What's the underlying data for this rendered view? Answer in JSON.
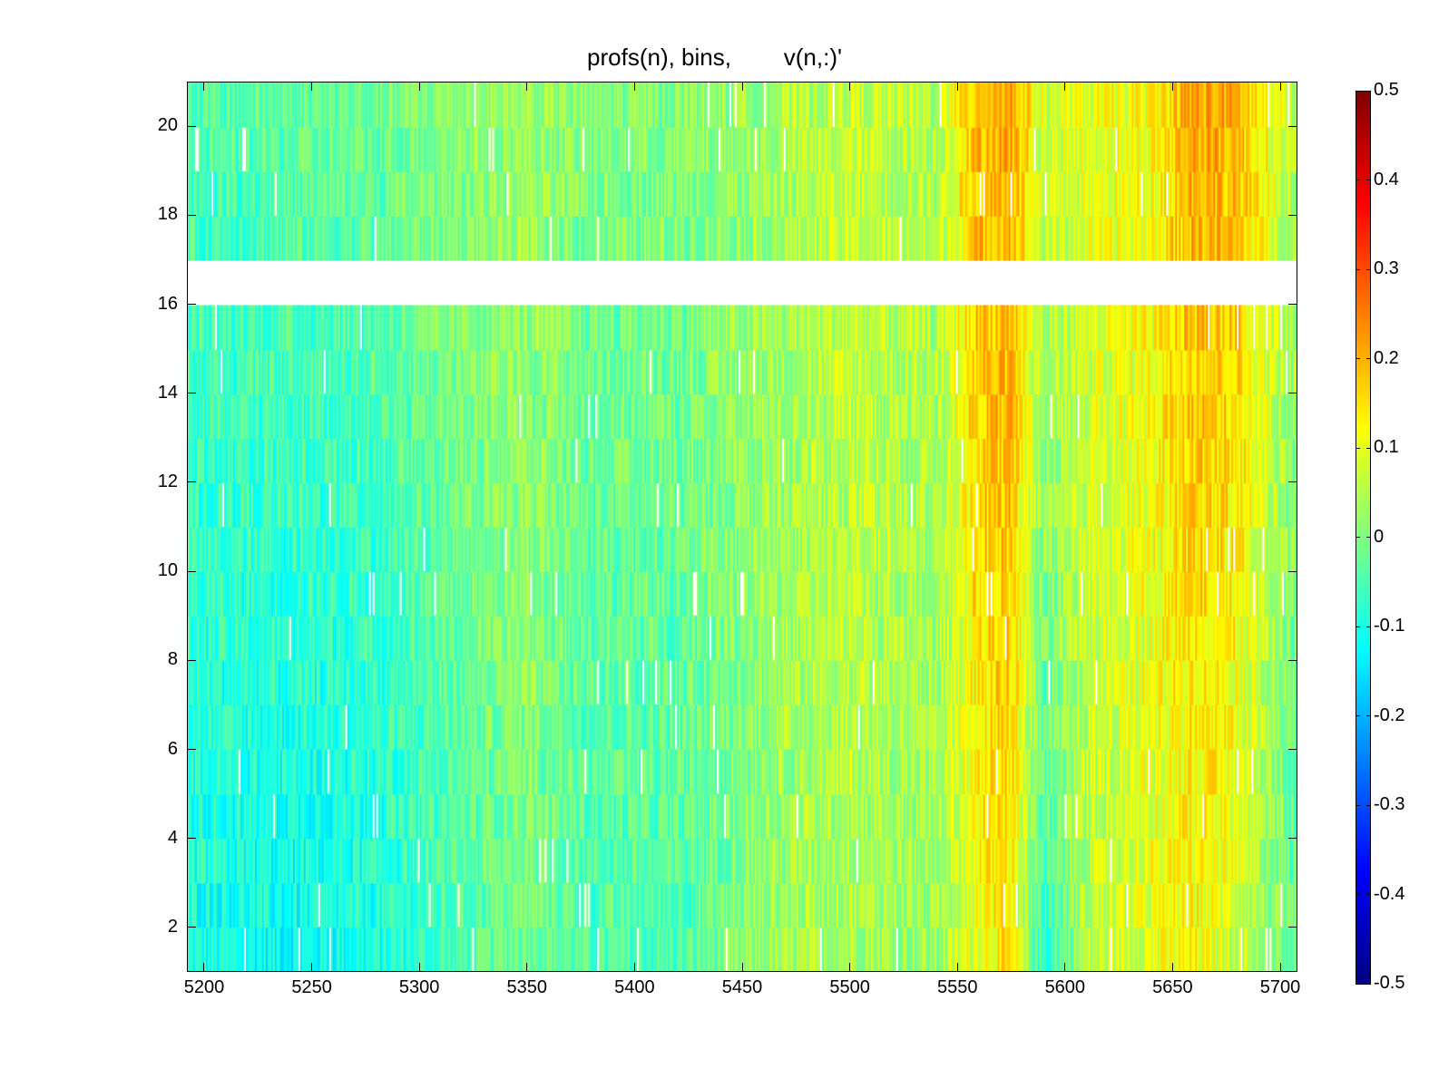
{
  "chart_data": {
    "type": "heatmap",
    "title": "profs(n), bins,        v(n,:)'",
    "xlabel": "",
    "ylabel": "",
    "xlim": [
      5192,
      5708
    ],
    "ylim": [
      1,
      21
    ],
    "x_ticks": [
      5200,
      5250,
      5300,
      5350,
      5400,
      5450,
      5500,
      5550,
      5600,
      5650,
      5700
    ],
    "y_ticks": [
      2,
      4,
      6,
      8,
      10,
      12,
      14,
      16,
      18,
      20
    ],
    "color_range": [
      -0.5,
      0.5
    ],
    "colorbar_ticks": [
      0.5,
      0.4,
      0.3,
      0.2,
      0.1,
      0,
      -0.1,
      -0.2,
      -0.3,
      -0.4,
      -0.5
    ],
    "colormap": "jet",
    "grid": false,
    "missing_rows": [
      16
    ],
    "row_trend": {
      "rows": [
        1,
        2,
        3,
        4,
        5,
        6,
        7,
        8,
        9,
        10,
        11,
        12,
        13,
        14,
        15,
        17,
        18,
        19,
        20
      ],
      "x": [
        5192,
        5240,
        5280,
        5320,
        5350,
        5380,
        5420,
        5460,
        5500,
        5540,
        5560,
        5575,
        5590,
        5610,
        5640,
        5660,
        5680,
        5708
      ],
      "bottom_values": [
        -0.1,
        -0.12,
        -0.1,
        -0.05,
        0.0,
        -0.05,
        -0.05,
        0.02,
        0.05,
        0.02,
        0.12,
        0.14,
        -0.08,
        0.05,
        0.1,
        0.12,
        0.08,
        -0.05
      ],
      "top_values": [
        -0.05,
        -0.03,
        -0.02,
        0.02,
        0.03,
        0.0,
        0.01,
        0.03,
        0.07,
        0.05,
        0.2,
        0.22,
        0.08,
        0.1,
        0.12,
        0.22,
        0.2,
        0.05
      ]
    }
  }
}
